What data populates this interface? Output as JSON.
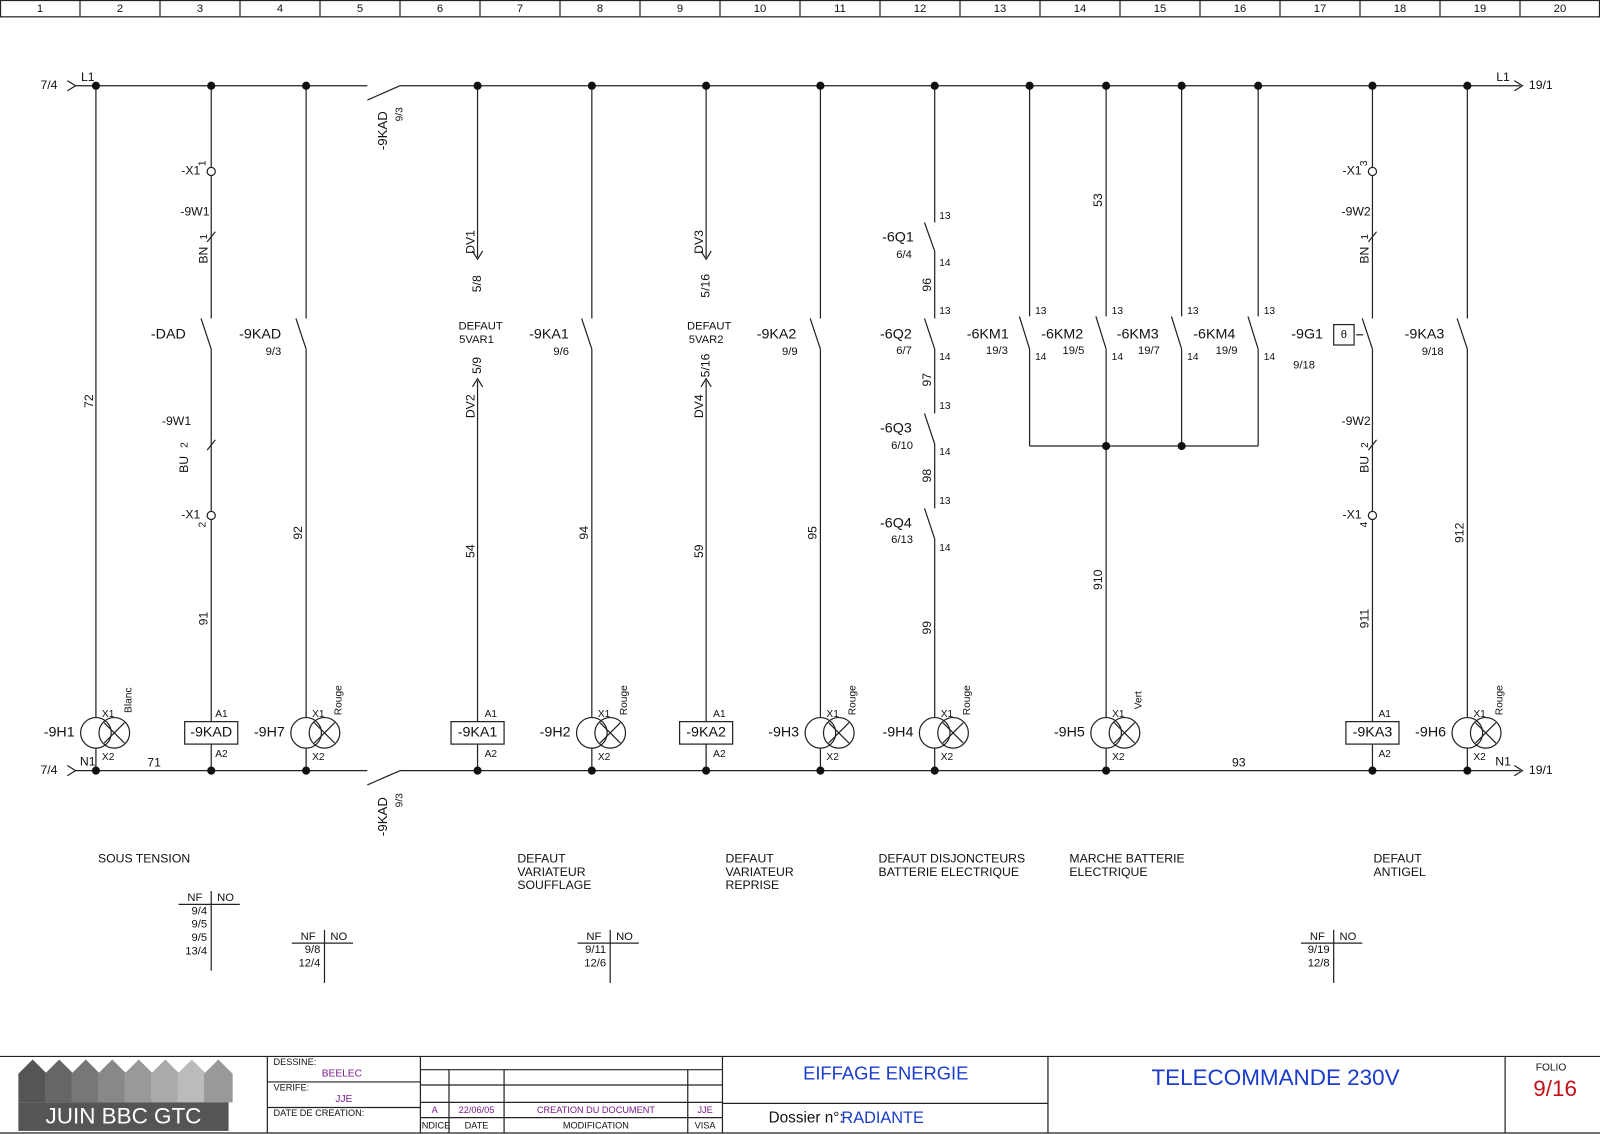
{
  "ruler": [
    1,
    2,
    3,
    4,
    5,
    6,
    7,
    8,
    9,
    10,
    11,
    12,
    13,
    14,
    15,
    16,
    17,
    18,
    19,
    20
  ],
  "rails": {
    "top_in": "7/4",
    "top_wire_in": "L1",
    "top_wire_out": "L1",
    "top_out": "19/1",
    "bottom_in": "7/4",
    "bottom_wire_in": "N1",
    "bottom_wire_out": "N1",
    "bottom_out": "19/1"
  },
  "main_contact": {
    "top_tag": "-9KAD",
    "top_ref": "9/3",
    "bottom_tag": "-9KAD",
    "bottom_ref": "9/3"
  },
  "circuits": [
    {
      "labels": [
        "72",
        "-9H1",
        "X1",
        "X2",
        "Blanc",
        "71"
      ]
    },
    {
      "labels": [
        "-X1",
        "1",
        "-9W1",
        "BN",
        "1",
        "-DAD",
        "-9W1",
        "BU",
        "2",
        "-X1",
        "2",
        "91",
        "-9KAD",
        "A1",
        "A2"
      ]
    },
    {
      "labels": [
        "-9KAD",
        "9/3",
        "92",
        "-9H7",
        "X1",
        "X2",
        "Rouge"
      ]
    },
    {
      "labels": [
        "DV1",
        "5/8",
        "DEFAUT",
        "5VAR1",
        "5/9",
        "DV2",
        "54",
        "-9KA1",
        "A1",
        "A2"
      ]
    },
    {
      "labels": [
        "-9KA1",
        "9/6",
        "94",
        "-9H2",
        "X1",
        "X2",
        "Rouge"
      ]
    },
    {
      "labels": [
        "DV3",
        "5/16",
        "DEFAUT",
        "5VAR2",
        "5/16",
        "DV4",
        "59",
        "-9KA2",
        "A1",
        "A2"
      ]
    },
    {
      "labels": [
        "-9KA2",
        "9/9",
        "95",
        "-9H3",
        "X1",
        "X2",
        "Rouge"
      ]
    },
    {
      "labels": [
        "-6Q1",
        "6/4",
        "13",
        "14",
        "96",
        "-6Q2",
        "6/7",
        "13",
        "14",
        "97",
        "-6Q3",
        "6/10",
        "13",
        "14",
        "98",
        "-6Q4",
        "6/13",
        "13",
        "14",
        "99",
        "-9H4",
        "X1",
        "X2",
        "Rouge"
      ]
    },
    {
      "labels": [
        "-6KM1",
        "19/3",
        "13",
        "14",
        "-6KM2",
        "19/5",
        "13",
        "14",
        "-6KM3",
        "19/7",
        "13",
        "14",
        "-6KM4",
        "19/9",
        "13",
        "14",
        "53",
        "910",
        "-9H5",
        "X1",
        "X2",
        "Vert",
        "93"
      ]
    },
    {
      "labels": [
        "-X1",
        "3",
        "-9W2",
        "BN",
        "1",
        "-9G1",
        "θ",
        "9/18",
        "-9W2",
        "BU",
        "2",
        "-X1",
        "4",
        "911",
        "-9KA3",
        "A1",
        "A2"
      ]
    },
    {
      "labels": [
        "-9KA3",
        "9/18",
        "912",
        "-9H6",
        "X1",
        "X2",
        "Rouge"
      ]
    }
  ],
  "functions": [
    [
      "SOUS TENSION"
    ],
    [
      "DEFAUT",
      "VARIATEUR",
      "SOUFFLAGE"
    ],
    [
      "DEFAUT",
      "VARIATEUR",
      "REPRISE"
    ],
    [
      "DEFAUT DISJONCTEURS",
      "BATTERIE ELECTRIQUE"
    ],
    [
      "MARCHE BATTERIE",
      "ELECTRIQUE"
    ],
    [
      "DEFAUT",
      "ANTIGEL"
    ]
  ],
  "cross_refs": [
    {
      "nf_header": "NF",
      "no_header": "NO",
      "nf": [
        "9/4",
        "9/5",
        "9/5",
        "13/4"
      ]
    },
    {
      "nf_header": "NF",
      "no_header": "NO",
      "nf": [
        "9/8",
        "12/4"
      ]
    },
    {
      "nf_header": "NF",
      "no_header": "NO",
      "nf": [
        "9/11",
        "12/6"
      ]
    },
    {
      "nf_header": "NF",
      "no_header": "NO",
      "nf": [
        "9/19",
        "12/8"
      ]
    }
  ],
  "title_block": {
    "logo": "JUIN BBC GTC",
    "drawn_label": "DESSINE:",
    "drawn_by": "BEELEC",
    "checked_label": "VERIFE:",
    "checked_by": "JJE",
    "created_label": "DATE DE CREATION:",
    "revision": {
      "index": "A",
      "date": "22/06/05",
      "modification": "CREATION DU DOCUMENT",
      "visa": "JJE"
    },
    "revision_headers": [
      "INDICE",
      "DATE",
      "MODIFICATION",
      "VISA"
    ],
    "company": "EIFFAGE ENERGIE",
    "file_label": "Dossier n°:",
    "file": "RADIANTE",
    "sheet_title": "TELECOMMANDE 230V",
    "folio_label": "FOLIO",
    "folio": "9/16"
  }
}
